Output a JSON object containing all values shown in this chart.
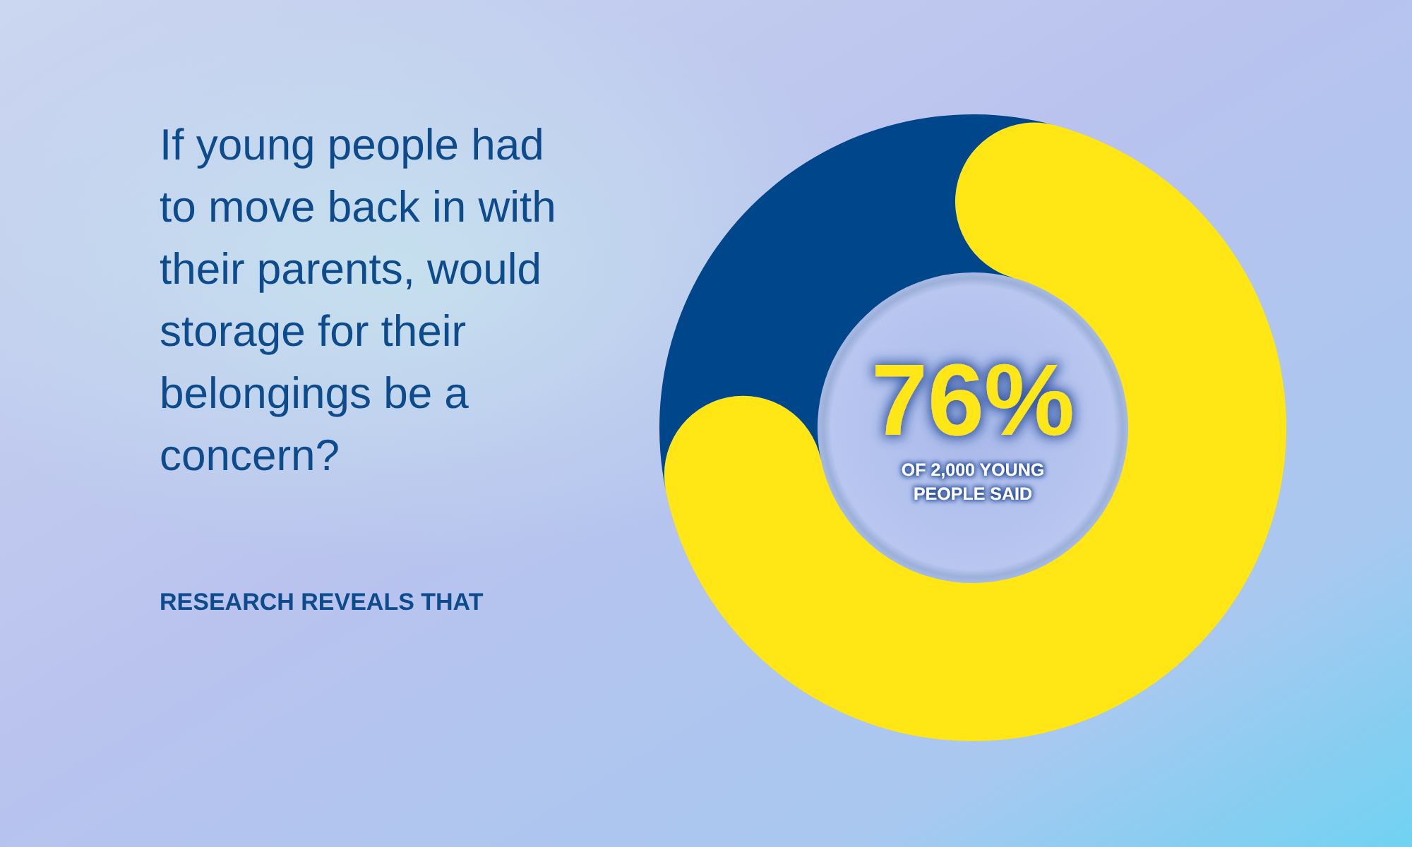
{
  "chart_data": {
    "type": "donut",
    "title": "If young people had to move back in with their parents, would storage for their belongings be a concern?",
    "categories": [
      null,
      null
    ],
    "values": [
      76,
      24
    ],
    "colors": [
      "#ffe614",
      "#00468a"
    ],
    "annotations": [
      "76%",
      "OF 2,000 YOUNG PEOPLE SAID",
      "RESEARCH REVEALS THAT"
    ]
  }
}
